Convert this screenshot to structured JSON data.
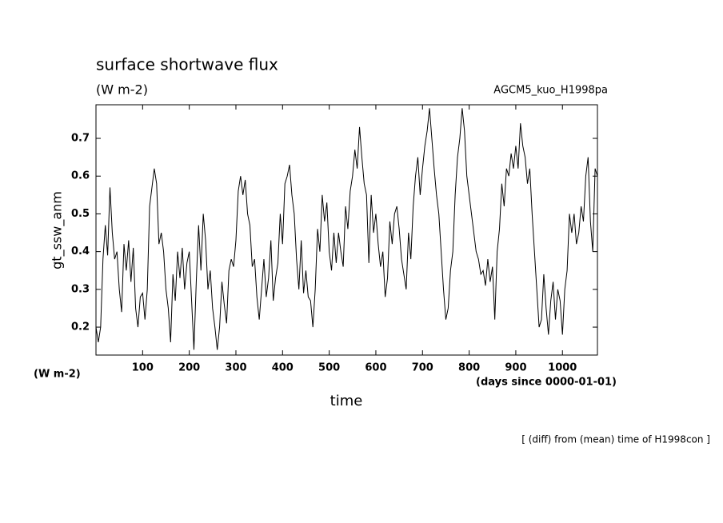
{
  "chart_data": {
    "type": "line",
    "title": "surface shortwave flux",
    "subtitle": "(W m-2)",
    "annotation": "AGCM5_kuo_H1998pa",
    "ylabel": "gt_ssw_anm",
    "yunits": "(W m-2)",
    "xlabel": "time",
    "xunits": "(days since 0000-01-01)",
    "footer": "[ (diff) from (mean) time of H1998con ]",
    "color": "#000000",
    "xlim": [
      0,
      1075
    ],
    "ylim": [
      0.126,
      0.789
    ],
    "xticks": [
      100,
      200,
      300,
      400,
      500,
      600,
      700,
      800,
      900,
      1000
    ],
    "yticks": [
      0.2,
      0.3,
      0.4,
      0.5,
      0.6,
      0.7
    ],
    "x": [
      0,
      5,
      10,
      15,
      20,
      25,
      30,
      35,
      40,
      45,
      50,
      55,
      60,
      65,
      70,
      75,
      80,
      85,
      90,
      95,
      100,
      105,
      110,
      115,
      120,
      125,
      130,
      135,
      140,
      145,
      150,
      155,
      160,
      165,
      170,
      175,
      180,
      185,
      190,
      195,
      200,
      205,
      210,
      215,
      220,
      225,
      230,
      235,
      240,
      245,
      250,
      255,
      260,
      265,
      270,
      275,
      280,
      285,
      290,
      295,
      300,
      305,
      310,
      315,
      320,
      325,
      330,
      335,
      340,
      345,
      350,
      355,
      360,
      365,
      370,
      375,
      380,
      385,
      390,
      395,
      400,
      405,
      410,
      415,
      420,
      425,
      430,
      435,
      440,
      445,
      450,
      455,
      460,
      465,
      470,
      475,
      480,
      485,
      490,
      495,
      500,
      505,
      510,
      515,
      520,
      525,
      530,
      535,
      540,
      545,
      550,
      555,
      560,
      565,
      570,
      575,
      580,
      585,
      590,
      595,
      600,
      605,
      610,
      615,
      620,
      625,
      630,
      635,
      640,
      645,
      650,
      655,
      660,
      665,
      670,
      675,
      680,
      685,
      690,
      695,
      700,
      705,
      710,
      715,
      720,
      725,
      730,
      735,
      740,
      745,
      750,
      755,
      760,
      765,
      770,
      775,
      780,
      785,
      790,
      795,
      800,
      805,
      810,
      815,
      820,
      825,
      830,
      835,
      840,
      845,
      850,
      855,
      860,
      865,
      870,
      875,
      880,
      885,
      890,
      895,
      900,
      905,
      910,
      915,
      920,
      925,
      930,
      935,
      940,
      945,
      950,
      955,
      960,
      965,
      970,
      975,
      980,
      985,
      990,
      995,
      1000,
      1005,
      1010,
      1015,
      1020,
      1025,
      1030,
      1035,
      1040,
      1045,
      1050,
      1055,
      1060,
      1065,
      1070,
      1075
    ],
    "values": [
      0.2,
      0.16,
      0.2,
      0.38,
      0.47,
      0.39,
      0.57,
      0.45,
      0.38,
      0.4,
      0.3,
      0.24,
      0.42,
      0.35,
      0.43,
      0.32,
      0.41,
      0.25,
      0.2,
      0.28,
      0.29,
      0.22,
      0.3,
      0.52,
      0.57,
      0.62,
      0.58,
      0.42,
      0.45,
      0.4,
      0.3,
      0.25,
      0.16,
      0.34,
      0.27,
      0.4,
      0.33,
      0.41,
      0.3,
      0.37,
      0.4,
      0.27,
      0.14,
      0.32,
      0.47,
      0.35,
      0.5,
      0.43,
      0.3,
      0.35,
      0.25,
      0.2,
      0.14,
      0.2,
      0.32,
      0.26,
      0.21,
      0.35,
      0.38,
      0.36,
      0.43,
      0.56,
      0.6,
      0.55,
      0.59,
      0.5,
      0.47,
      0.36,
      0.38,
      0.28,
      0.22,
      0.3,
      0.38,
      0.28,
      0.33,
      0.43,
      0.27,
      0.33,
      0.37,
      0.5,
      0.42,
      0.58,
      0.6,
      0.63,
      0.55,
      0.5,
      0.38,
      0.3,
      0.43,
      0.29,
      0.35,
      0.28,
      0.27,
      0.2,
      0.3,
      0.46,
      0.4,
      0.55,
      0.48,
      0.53,
      0.4,
      0.35,
      0.45,
      0.37,
      0.45,
      0.4,
      0.36,
      0.52,
      0.46,
      0.56,
      0.6,
      0.67,
      0.62,
      0.73,
      0.65,
      0.58,
      0.55,
      0.37,
      0.55,
      0.45,
      0.5,
      0.42,
      0.36,
      0.4,
      0.28,
      0.33,
      0.48,
      0.42,
      0.5,
      0.52,
      0.46,
      0.38,
      0.34,
      0.3,
      0.45,
      0.38,
      0.52,
      0.6,
      0.65,
      0.55,
      0.62,
      0.68,
      0.72,
      0.78,
      0.7,
      0.62,
      0.55,
      0.5,
      0.4,
      0.3,
      0.22,
      0.25,
      0.35,
      0.4,
      0.55,
      0.65,
      0.7,
      0.78,
      0.72,
      0.6,
      0.55,
      0.5,
      0.45,
      0.4,
      0.38,
      0.34,
      0.35,
      0.31,
      0.38,
      0.32,
      0.36,
      0.22,
      0.4,
      0.46,
      0.58,
      0.52,
      0.62,
      0.6,
      0.66,
      0.62,
      0.68,
      0.62,
      0.74,
      0.68,
      0.65,
      0.58,
      0.62,
      0.5,
      0.4,
      0.3,
      0.2,
      0.22,
      0.34,
      0.25,
      0.18,
      0.27,
      0.32,
      0.22,
      0.3,
      0.27,
      0.18,
      0.3,
      0.35,
      0.5,
      0.45,
      0.5,
      0.42,
      0.45,
      0.52,
      0.48,
      0.6,
      0.65,
      0.48,
      0.4,
      0.62,
      0.6
    ]
  }
}
